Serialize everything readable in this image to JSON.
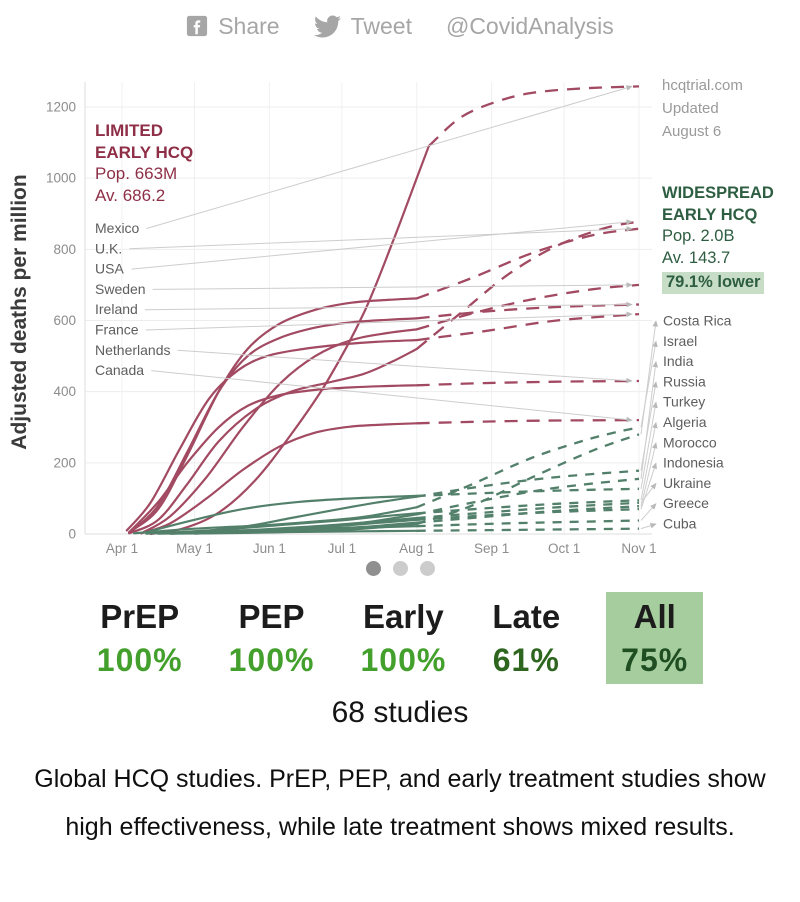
{
  "header": {
    "share": "Share",
    "tweet": "Tweet",
    "handle": "@CovidAnalysis"
  },
  "source": {
    "site": "hcqtrial.com",
    "updated": "Updated",
    "date": "August 6"
  },
  "chart": {
    "ylabel": "Adjusted deaths per million",
    "left_group": {
      "title_line1": "LIMITED",
      "title_line2": "EARLY HCQ",
      "pop": "Pop. 663M",
      "avg": "Av. 686.2"
    },
    "right_group": {
      "title_line1": "WIDESPREAD",
      "title_line2": "EARLY HCQ",
      "pop": "Pop. 2.0B",
      "avg": "Av. 143.7",
      "lower": "79.1% lower"
    }
  },
  "chart_data": {
    "type": "line",
    "ylabel": "Adjusted deaths per million",
    "ylim": [
      0,
      1260
    ],
    "yticks": [
      0,
      200,
      400,
      600,
      800,
      1000,
      1200
    ],
    "xticks": [
      "Apr 1",
      "May 1",
      "Jun 1",
      "Jul 1",
      "Aug 1",
      "Sep 1",
      "Oct 1",
      "Nov 1"
    ],
    "xtick_days": [
      0,
      30,
      61,
      91,
      122,
      153,
      183,
      214
    ],
    "x_unit": "days since Apr 1 (2020), dashed segments are projections after Aug 1",
    "colors": {
      "limited": "#a24a62",
      "widespread": "#53806a"
    },
    "groups": {
      "limited": {
        "label": "LIMITED EARLY HCQ",
        "population": "663M",
        "average": 686.2
      },
      "widespread": {
        "label": "WIDESPREAD EARLY HCQ",
        "population": "2.0B",
        "average": 143.7,
        "difference": "79.1% lower"
      }
    },
    "series": [
      {
        "name": "Mexico",
        "group": "limited",
        "solid": [
          [
            12,
            0
          ],
          [
            25,
            15
          ],
          [
            40,
            60
          ],
          [
            55,
            150
          ],
          [
            70,
            280
          ],
          [
            85,
            430
          ],
          [
            100,
            620
          ],
          [
            112,
            820
          ],
          [
            122,
            1000
          ],
          [
            127,
            1090
          ]
        ],
        "dashed": [
          [
            127,
            1090
          ],
          [
            140,
            1170
          ],
          [
            155,
            1215
          ],
          [
            170,
            1240
          ],
          [
            190,
            1252
          ],
          [
            214,
            1258
          ]
        ]
      },
      {
        "name": "U.K.",
        "group": "limited",
        "solid": [
          [
            3,
            5
          ],
          [
            15,
            70
          ],
          [
            27,
            220
          ],
          [
            40,
            400
          ],
          [
            52,
            520
          ],
          [
            65,
            590
          ],
          [
            80,
            630
          ],
          [
            95,
            650
          ],
          [
            110,
            658
          ],
          [
            122,
            662
          ]
        ],
        "dashed": [
          [
            122,
            662
          ],
          [
            145,
            720
          ],
          [
            170,
            790
          ],
          [
            195,
            840
          ],
          [
            214,
            858
          ]
        ]
      },
      {
        "name": "USA",
        "group": "limited",
        "solid": [
          [
            3,
            2
          ],
          [
            15,
            40
          ],
          [
            27,
            140
          ],
          [
            40,
            260
          ],
          [
            55,
            350
          ],
          [
            70,
            400
          ],
          [
            85,
            425
          ],
          [
            100,
            450
          ],
          [
            112,
            485
          ],
          [
            122,
            520
          ]
        ],
        "dashed": [
          [
            122,
            520
          ],
          [
            140,
            620
          ],
          [
            160,
            730
          ],
          [
            180,
            810
          ],
          [
            200,
            860
          ],
          [
            214,
            878
          ]
        ]
      },
      {
        "name": "Sweden",
        "group": "limited",
        "solid": [
          [
            8,
            2
          ],
          [
            20,
            50
          ],
          [
            35,
            160
          ],
          [
            50,
            300
          ],
          [
            65,
            420
          ],
          [
            80,
            500
          ],
          [
            95,
            545
          ],
          [
            110,
            565
          ],
          [
            122,
            575
          ]
        ],
        "dashed": [
          [
            122,
            575
          ],
          [
            145,
            620
          ],
          [
            170,
            660
          ],
          [
            195,
            688
          ],
          [
            214,
            700
          ]
        ]
      },
      {
        "name": "Ireland",
        "group": "limited",
        "solid": [
          [
            3,
            3
          ],
          [
            15,
            80
          ],
          [
            27,
            230
          ],
          [
            40,
            400
          ],
          [
            52,
            500
          ],
          [
            65,
            550
          ],
          [
            80,
            580
          ],
          [
            95,
            595
          ],
          [
            110,
            602
          ],
          [
            122,
            606
          ]
        ],
        "dashed": [
          [
            122,
            606
          ],
          [
            150,
            625
          ],
          [
            180,
            638
          ],
          [
            214,
            645
          ]
        ]
      },
      {
        "name": "France",
        "group": "limited",
        "solid": [
          [
            2,
            10
          ],
          [
            12,
            90
          ],
          [
            24,
            240
          ],
          [
            36,
            380
          ],
          [
            48,
            460
          ],
          [
            60,
            500
          ],
          [
            75,
            520
          ],
          [
            90,
            532
          ],
          [
            105,
            540
          ],
          [
            122,
            545
          ]
        ],
        "dashed": [
          [
            122,
            545
          ],
          [
            150,
            570
          ],
          [
            180,
            600
          ],
          [
            214,
            618
          ]
        ]
      },
      {
        "name": "Netherlands",
        "group": "limited",
        "solid": [
          [
            3,
            5
          ],
          [
            15,
            90
          ],
          [
            27,
            200
          ],
          [
            40,
            300
          ],
          [
            52,
            360
          ],
          [
            65,
            390
          ],
          [
            80,
            405
          ],
          [
            95,
            412
          ],
          [
            110,
            416
          ],
          [
            122,
            418
          ]
        ],
        "dashed": [
          [
            122,
            418
          ],
          [
            150,
            424
          ],
          [
            180,
            428
          ],
          [
            214,
            430
          ]
        ]
      },
      {
        "name": "Canada",
        "group": "limited",
        "solid": [
          [
            8,
            2
          ],
          [
            20,
            30
          ],
          [
            35,
            100
          ],
          [
            50,
            180
          ],
          [
            65,
            245
          ],
          [
            80,
            285
          ],
          [
            95,
            302
          ],
          [
            110,
            308
          ],
          [
            122,
            311
          ]
        ],
        "dashed": [
          [
            122,
            311
          ],
          [
            150,
            316
          ],
          [
            180,
            319
          ],
          [
            214,
            320
          ]
        ]
      },
      {
        "name": "Costa Rica",
        "group": "widespread",
        "solid": [
          [
            20,
            1
          ],
          [
            50,
            3
          ],
          [
            80,
            8
          ],
          [
            100,
            15
          ],
          [
            122,
            28
          ]
        ],
        "dashed": [
          [
            122,
            28
          ],
          [
            145,
            80
          ],
          [
            170,
            160
          ],
          [
            195,
            235
          ],
          [
            214,
            280
          ]
        ]
      },
      {
        "name": "Israel",
        "group": "widespread",
        "solid": [
          [
            5,
            2
          ],
          [
            30,
            15
          ],
          [
            60,
            25
          ],
          [
            80,
            35
          ],
          [
            100,
            48
          ],
          [
            122,
            75
          ]
        ],
        "dashed": [
          [
            122,
            75
          ],
          [
            145,
            140
          ],
          [
            170,
            215
          ],
          [
            195,
            270
          ],
          [
            214,
            300
          ]
        ]
      },
      {
        "name": "India",
        "group": "widespread",
        "solid": [
          [
            30,
            1
          ],
          [
            60,
            8
          ],
          [
            80,
            18
          ],
          [
            100,
            32
          ],
          [
            122,
            55
          ]
        ],
        "dashed": [
          [
            122,
            55
          ],
          [
            150,
            95
          ],
          [
            180,
            130
          ],
          [
            214,
            155
          ]
        ]
      },
      {
        "name": "Russia",
        "group": "widespread",
        "solid": [
          [
            25,
            2
          ],
          [
            50,
            20
          ],
          [
            70,
            45
          ],
          [
            90,
            70
          ],
          [
            105,
            88
          ],
          [
            122,
            105
          ]
        ],
        "dashed": [
          [
            122,
            105
          ],
          [
            150,
            135
          ],
          [
            180,
            160
          ],
          [
            214,
            178
          ]
        ]
      },
      {
        "name": "Turkey",
        "group": "widespread",
        "solid": [
          [
            10,
            5
          ],
          [
            30,
            40
          ],
          [
            50,
            70
          ],
          [
            70,
            88
          ],
          [
            90,
            98
          ],
          [
            105,
            103
          ],
          [
            122,
            107
          ]
        ],
        "dashed": [
          [
            122,
            107
          ],
          [
            150,
            115
          ],
          [
            180,
            122
          ],
          [
            214,
            127
          ]
        ]
      },
      {
        "name": "Algeria",
        "group": "widespread",
        "solid": [
          [
            15,
            2
          ],
          [
            40,
            12
          ],
          [
            65,
            25
          ],
          [
            90,
            38
          ],
          [
            105,
            48
          ],
          [
            122,
            58
          ]
        ],
        "dashed": [
          [
            122,
            58
          ],
          [
            150,
            72
          ],
          [
            180,
            85
          ],
          [
            214,
            95
          ]
        ]
      },
      {
        "name": "Morocco",
        "group": "widespread",
        "solid": [
          [
            15,
            2
          ],
          [
            45,
            6
          ],
          [
            75,
            12
          ],
          [
            100,
            20
          ],
          [
            122,
            32
          ]
        ],
        "dashed": [
          [
            122,
            32
          ],
          [
            150,
            48
          ],
          [
            180,
            65
          ],
          [
            214,
            78
          ]
        ]
      },
      {
        "name": "Indonesia",
        "group": "widespread",
        "solid": [
          [
            20,
            1
          ],
          [
            50,
            8
          ],
          [
            80,
            18
          ],
          [
            100,
            28
          ],
          [
            122,
            40
          ]
        ],
        "dashed": [
          [
            122,
            40
          ],
          [
            150,
            52
          ],
          [
            180,
            62
          ],
          [
            214,
            70
          ]
        ]
      },
      {
        "name": "Ukraine",
        "group": "widespread",
        "solid": [
          [
            20,
            2
          ],
          [
            50,
            10
          ],
          [
            80,
            22
          ],
          [
            100,
            32
          ],
          [
            122,
            45
          ]
        ],
        "dashed": [
          [
            122,
            45
          ],
          [
            150,
            60
          ],
          [
            180,
            75
          ],
          [
            214,
            88
          ]
        ]
      },
      {
        "name": "Greece",
        "group": "widespread",
        "solid": [
          [
            10,
            1
          ],
          [
            40,
            8
          ],
          [
            70,
            14
          ],
          [
            100,
            18
          ],
          [
            122,
            22
          ]
        ],
        "dashed": [
          [
            122,
            22
          ],
          [
            160,
            30
          ],
          [
            214,
            38
          ]
        ]
      },
      {
        "name": "Cuba",
        "group": "widespread",
        "solid": [
          [
            15,
            1
          ],
          [
            50,
            4
          ],
          [
            90,
            7
          ],
          [
            122,
            9
          ]
        ],
        "dashed": [
          [
            122,
            9
          ],
          [
            170,
            12
          ],
          [
            214,
            15
          ]
        ]
      }
    ]
  },
  "carousel": {
    "dots": [
      "active",
      "inactive",
      "inactive"
    ],
    "active_color": "#8f8f8f",
    "inactive_color": "#cccccc"
  },
  "stats": {
    "items": [
      {
        "label": "PrEP",
        "value": "100%",
        "color": "#44a02c",
        "highlight": false
      },
      {
        "label": "PEP",
        "value": "100%",
        "color": "#44a02c",
        "highlight": false
      },
      {
        "label": "Early",
        "value": "100%",
        "color": "#44a02c",
        "highlight": false
      },
      {
        "label": "Late",
        "value": "61%",
        "color": "#2e661f",
        "highlight": false
      },
      {
        "label": "All",
        "value": "75%",
        "color": "#1e4e22",
        "highlight": true
      }
    ],
    "highlight_bg": "#a6cd9d",
    "studies": "68 studies"
  },
  "caption": "Global HCQ studies. PrEP, PEP, and early treatment studies show high effectiveness, while late treatment shows mixed results."
}
